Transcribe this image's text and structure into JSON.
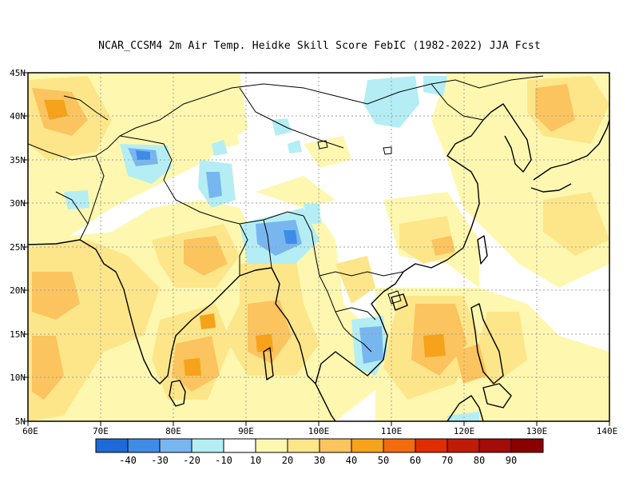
{
  "title": "NCAR_CCSM4  2m Air Temp. Heidke Skill Score FebIC (1982-2022) JJA Fcst",
  "lat_labels": [
    "45N",
    "40N",
    "35N",
    "30N",
    "25N",
    "20N",
    "15N",
    "10N",
    "5N"
  ],
  "lon_labels": [
    "60E",
    "70E",
    "80E",
    "90E",
    "100E",
    "110E",
    "120E",
    "130E",
    "140E"
  ],
  "colorbar": {
    "labels": [
      "-40",
      "-30",
      "-20",
      "-10",
      "10",
      "20",
      "30",
      "40",
      "50",
      "60",
      "70",
      "80",
      "90"
    ],
    "colors": [
      "#1e6ad9",
      "#3e8ce6",
      "#78b6f0",
      "#b4eef4",
      "#ffffff",
      "#fef7b0",
      "#fde68a",
      "#fbc45e",
      "#f6a21a",
      "#f26b0f",
      "#e02d00",
      "#c11a06",
      "#a30c08",
      "#8b0000"
    ]
  },
  "map_data": {
    "type": "heatmap",
    "extent": {
      "lon": [
        60,
        140
      ],
      "lat": [
        5,
        45
      ]
    },
    "units": "Heidke Skill Score",
    "features": [
      {
        "region": "Central Asia / Kazakhstan",
        "level": 30
      },
      {
        "region": "Afghanistan",
        "level": 20
      },
      {
        "region": "Kashmir / Western Himalaya",
        "level": -20
      },
      {
        "region": "Tibet (central)",
        "level": -10
      },
      {
        "region": "Assam / Northern Myanmar",
        "level": -30
      },
      {
        "region": "Western India",
        "level": 30
      },
      {
        "region": "Central India",
        "level": 30
      },
      {
        "region": "Bay of Bengal",
        "level": 30
      },
      {
        "region": "Southern Vietnam / Cambodia",
        "level": -20
      },
      {
        "region": "South China Sea",
        "level": 30
      },
      {
        "region": "Philippines",
        "level": 30
      },
      {
        "region": "Mongolia / Gobi",
        "level": -10
      },
      {
        "region": "Korea / Northeast China",
        "level": 30
      },
      {
        "region": "Western Pacific",
        "level": 20
      }
    ]
  }
}
